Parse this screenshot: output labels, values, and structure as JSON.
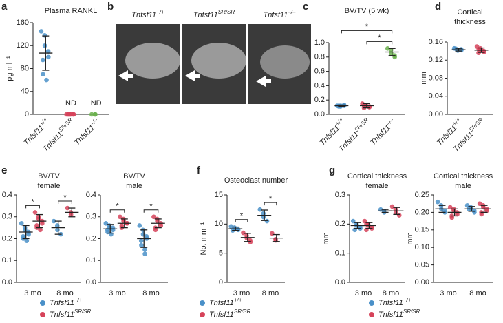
{
  "chart_data": [
    {
      "type": "dot",
      "panel": "a",
      "title": [
        "Plasma RANKL"
      ],
      "ylabel": "pg ml⁻¹",
      "ylim": [
        0,
        160
      ],
      "yticks": [
        0,
        40,
        80,
        120,
        160
      ],
      "categories": [
        "Tnfsf11",
        "Tnfsf11",
        "Tnfsf11"
      ],
      "category_sup": [
        "+/+",
        "SR/SR",
        "–/–"
      ],
      "series": [
        {
          "color": "#4a90c8",
          "points": [
            [
              145,
              138,
              120,
              110,
              100,
              95,
              70,
              60
            ],
            null,
            null
          ],
          "means": [
            107,
            null,
            null
          ],
          "sds": [
            30,
            null,
            null
          ]
        },
        {
          "color": "#d6435a",
          "points": [
            null,
            [
              0,
              0,
              0,
              0,
              0,
              0,
              0,
              0
            ],
            null
          ],
          "means": [
            null,
            null,
            null
          ],
          "sds": [
            null,
            null,
            null
          ]
        },
        {
          "color": "#6ab04c",
          "points": [
            null,
            null,
            [
              0,
              0,
              0
            ]
          ],
          "means": [
            null,
            null,
            null
          ],
          "sds": [
            null,
            null,
            null
          ]
        }
      ],
      "annotations": [
        {
          "text": "ND",
          "category": 1
        },
        {
          "text": "ND",
          "category": 2
        }
      ]
    },
    {
      "type": "image",
      "panel": "b",
      "labels": [
        {
          "text": "Tnfsf11",
          "sup": "+/+"
        },
        {
          "text": "Tnfsf11",
          "sup": "SR/SR"
        },
        {
          "text": "Tnfsf11",
          "sup": "–/–"
        }
      ]
    },
    {
      "type": "dot",
      "panel": "c",
      "title": [
        "BV/TV (5 wk)"
      ],
      "ylim": [
        0,
        1
      ],
      "yticks": [
        {
          "value": 0,
          "label": "0.0"
        },
        0.2,
        0.4,
        0.6,
        0.8,
        {
          "value": 1,
          "label": "1.0"
        }
      ],
      "categories": [
        "Tnfsf11",
        "Tnfsf11",
        "Tnfsf11"
      ],
      "category_sup": [
        "+/+",
        "SR/SR",
        "–/–"
      ],
      "series": [
        {
          "color": "#4a90c8",
          "points": [
            [
              0.12,
              0.11,
              0.12,
              0.13,
              0.12,
              0.11,
              0.12
            ],
            null,
            null
          ],
          "means": [
            0.12,
            null,
            null
          ],
          "sds": [
            0.01,
            null,
            null
          ]
        },
        {
          "color": "#d6435a",
          "points": [
            null,
            [
              0.15,
              0.13,
              0.12,
              0.1,
              0.11,
              0.09,
              0.12
            ],
            null
          ],
          "means": [
            null,
            0.12,
            null
          ],
          "sds": [
            null,
            0.03,
            null
          ]
        },
        {
          "color": "#6ab04c",
          "points": [
            null,
            null,
            [
              0.92,
              0.9,
              0.85,
              0.82,
              0.8
            ]
          ],
          "means": [
            null,
            null,
            0.87
          ],
          "sds": [
            null,
            null,
            0.05
          ]
        }
      ],
      "brackets": [
        {
          "from": 1,
          "to": 2,
          "label": "*"
        },
        {
          "from": 0,
          "to": 2,
          "label": "*"
        }
      ]
    },
    {
      "type": "dot",
      "panel": "d",
      "title": [
        "Cortical",
        "thickness"
      ],
      "ylabel": "mm",
      "ylim": [
        0,
        0.16
      ],
      "yticks": [
        {
          "value": 0,
          "label": "0.00"
        },
        0.04,
        0.08,
        0.12,
        0.16
      ],
      "categories": [
        "Tnfsf11",
        "Tnfsf11"
      ],
      "category_sup": [
        "+/+",
        "SR/SR"
      ],
      "series": [
        {
          "color": "#4a90c8",
          "points": [
            [
              0.146,
              0.143,
              0.141,
              0.144,
              0.142,
              0.145
            ],
            null
          ],
          "means": [
            0.143,
            null
          ],
          "sds": [
            0.003,
            null
          ]
        },
        {
          "color": "#d6435a",
          "points": [
            null,
            [
              0.15,
              0.146,
              0.143,
              0.14,
              0.138,
              0.136,
              0.144,
              0.141
            ]
          ],
          "means": [
            null,
            0.142
          ],
          "sds": [
            null,
            0.005
          ]
        }
      ]
    },
    {
      "type": "dot",
      "panel": "e",
      "title": [
        "BV/TV",
        "female"
      ],
      "legend": true,
      "ylim": [
        0,
        0.4
      ],
      "yticks": [
        {
          "value": 0,
          "label": "0.0"
        },
        0.1,
        0.2,
        0.3,
        0.4
      ],
      "categories": [
        "3 mo",
        "8 mo"
      ],
      "series": [
        {
          "name": "Tnfsf11",
          "name_sup": "+/+",
          "color": "#4a90c8",
          "points": [
            [
              0.27,
              0.25,
              0.24,
              0.23,
              0.22,
              0.21,
              0.2,
              0.19
            ],
            [
              0.28,
              0.26,
              0.24,
              0.22
            ]
          ],
          "means": [
            0.23,
            0.25
          ],
          "sds": [
            0.03,
            0.03
          ]
        },
        {
          "name": "Tnfsf11",
          "name_sup": "SR/SR",
          "color": "#d6435a",
          "points": [
            [
              0.32,
              0.3,
              0.29,
              0.28,
              0.27,
              0.26,
              0.25,
              0.24
            ],
            [
              0.34,
              0.32,
              0.31
            ]
          ],
          "means": [
            0.28,
            0.32
          ],
          "sds": [
            0.03,
            0.02
          ]
        }
      ],
      "brackets": [
        {
          "category": 0,
          "label": "*"
        },
        {
          "category": 1,
          "label": "*"
        }
      ]
    },
    {
      "type": "dot",
      "title": [
        "BV/TV",
        "male"
      ],
      "ylim": [
        0,
        0.4
      ],
      "yticks": [
        {
          "value": 0,
          "label": "0.0"
        },
        0.1,
        0.2,
        0.3,
        0.4
      ],
      "categories": [
        "3 mo",
        "8 mo"
      ],
      "series": [
        {
          "color": "#4a90c8",
          "points": [
            [
              0.27,
              0.26,
              0.25,
              0.25,
              0.24,
              0.24,
              0.23,
              0.22
            ],
            [
              0.26,
              0.24,
              0.22,
              0.21,
              0.2,
              0.19,
              0.17,
              0.15,
              0.13
            ]
          ],
          "means": [
            0.245,
            0.2
          ],
          "sds": [
            0.02,
            0.04
          ]
        },
        {
          "color": "#d6435a",
          "points": [
            [
              0.3,
              0.29,
              0.28,
              0.27,
              0.27,
              0.26,
              0.25
            ],
            [
              0.3,
              0.29,
              0.28,
              0.27,
              0.26,
              0.25,
              0.24
            ]
          ],
          "means": [
            0.27,
            0.27
          ],
          "sds": [
            0.02,
            0.02
          ]
        }
      ],
      "brackets": [
        {
          "category": 0,
          "label": "*"
        },
        {
          "category": 1,
          "label": "*"
        }
      ]
    },
    {
      "type": "dot",
      "panel": "f",
      "title": [
        "Osteoclast number"
      ],
      "ylabel": "No. mm⁻¹",
      "legend": true,
      "ylim": [
        0,
        15
      ],
      "yticks": [
        0,
        5,
        10,
        15
      ],
      "categories": [
        "3 mo",
        "8 mo"
      ],
      "series": [
        {
          "name": "Tnfsf11",
          "name_sup": "+/+",
          "color": "#4a90c8",
          "points": [
            [
              9.6,
              9.4,
              9.2,
              9.1,
              9,
              8.9
            ],
            [
              12.5,
              11.8,
              11.2,
              10.5
            ]
          ],
          "means": [
            9.2,
            11.5
          ],
          "sds": [
            0.3,
            0.9
          ]
        },
        {
          "name": "Tnfsf11",
          "name_sup": "SR/SR",
          "color": "#d6435a",
          "points": [
            [
              8.5,
              8,
              7.6,
              7.2,
              6.9
            ],
            [
              8.4,
              7.4,
              7.2
            ]
          ],
          "means": [
            7.7,
            7.6
          ],
          "sds": [
            0.7,
            0.6
          ]
        }
      ],
      "brackets": [
        {
          "category": 0,
          "label": "*"
        },
        {
          "category": 1,
          "label": "*"
        }
      ]
    },
    {
      "type": "dot",
      "panel": "g",
      "title": [
        "Cortical thickness",
        "female"
      ],
      "ylabel": "mm",
      "legend": true,
      "ylim": [
        0,
        0.3
      ],
      "yticks": [
        {
          "value": 0,
          "label": "0.0"
        },
        0.1,
        0.2,
        0.3
      ],
      "categories": [
        "3 mo",
        "8 mo"
      ],
      "series": [
        {
          "name": "Tnfsf11",
          "name_sup": "+/+",
          "color": "#4a90c8",
          "points": [
            [
              0.21,
              0.2,
              0.195,
              0.19,
              0.185,
              0.18
            ],
            [
              0.25,
              0.245,
              0.24
            ]
          ],
          "means": [
            0.195,
            0.245
          ],
          "sds": [
            0.01,
            0.005
          ]
        },
        {
          "name": "Tnfsf11",
          "name_sup": "SR/SR",
          "color": "#d6435a",
          "points": [
            [
              0.21,
              0.2,
              0.195,
              0.19,
              0.185,
              0.18,
              0.2
            ],
            [
              0.26,
              0.25,
              0.24,
              0.23
            ]
          ],
          "means": [
            0.195,
            0.245
          ],
          "sds": [
            0.01,
            0.012
          ]
        }
      ]
    },
    {
      "type": "dot",
      "title": [
        "Cortical thickness",
        "male"
      ],
      "ylabel": "mm",
      "ylim": [
        0,
        0.25
      ],
      "yticks": [
        {
          "value": 0,
          "label": "0.00"
        },
        0.05,
        {
          "value": 0.1,
          "label": "0.10"
        },
        0.15,
        {
          "value": 0.2,
          "label": "0.20"
        },
        0.25
      ],
      "categories": [
        "3 mo",
        "8 mo"
      ],
      "series": [
        {
          "color": "#4a90c8",
          "points": [
            [
              0.23,
              0.22,
              0.21,
              0.205,
              0.2
            ],
            [
              0.22,
              0.215,
              0.21,
              0.205,
              0.2,
              0.21
            ]
          ],
          "means": [
            0.21,
            0.21
          ],
          "sds": [
            0.01,
            0.007
          ]
        },
        {
          "color": "#d6435a",
          "points": [
            [
              0.215,
              0.21,
              0.205,
              0.2,
              0.195,
              0.19,
              0.185
            ],
            [
              0.225,
              0.22,
              0.215,
              0.21,
              0.205,
              0.2,
              0.195
            ]
          ],
          "means": [
            0.2,
            0.21
          ],
          "sds": [
            0.01,
            0.01
          ]
        }
      ]
    }
  ]
}
